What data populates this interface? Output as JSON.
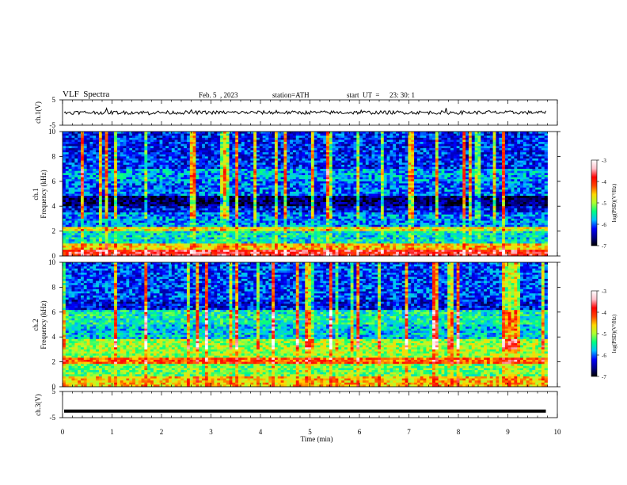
{
  "header": {
    "title": "VLF  Spectra",
    "date": "Feb. 5  , 2023",
    "station": "station=ATH",
    "start_label": "start  UT  =",
    "start_time": "23: 30: 1"
  },
  "colors": {
    "trace": "#000000",
    "colormap": [
      "#000000",
      "#00008b",
      "#0000ff",
      "#00bfff",
      "#00ff7f",
      "#adff2f",
      "#ffd700",
      "#ff4500",
      "#ff0000",
      "#ffc0cb",
      "#ffffff"
    ]
  },
  "chart_data": [
    {
      "type": "line",
      "panel": "ch1-waveform",
      "ylabel": "ch.1(V)",
      "ylim": [
        -5,
        5
      ],
      "yticks": [
        "5",
        "-5"
      ],
      "x_minutes_end": 9.8,
      "level_approx": 0,
      "grid": false
    },
    {
      "type": "heatmap",
      "panel": "ch1-spectrogram",
      "ylabel": "ch.1\nFrequency  (kHz)",
      "ylim": [
        0,
        10
      ],
      "yticks": [
        "0",
        "2",
        "4",
        "6",
        "8",
        "10"
      ],
      "colorbar": {
        "label": "log(PSD)(V²/Hz)",
        "range": [
          -7,
          -3
        ],
        "ticks": [
          "-3",
          "-4",
          "-5",
          "-6",
          "-7"
        ]
      },
      "bands_khz": [
        {
          "from": 0.0,
          "to": 0.5,
          "level": -3.8
        },
        {
          "from": 0.5,
          "to": 1.0,
          "level": -4.6
        },
        {
          "from": 1.0,
          "to": 2.0,
          "level": -5.6
        },
        {
          "from": 2.0,
          "to": 2.4,
          "level": -4.8
        },
        {
          "from": 2.4,
          "to": 3.5,
          "level": -5.9
        },
        {
          "from": 3.5,
          "to": 4.0,
          "level": -6.3
        },
        {
          "from": 4.0,
          "to": 4.8,
          "level": -6.7
        },
        {
          "from": 4.8,
          "to": 6.0,
          "level": -6.0
        },
        {
          "from": 6.0,
          "to": 7.0,
          "level": -5.8
        },
        {
          "from": 7.0,
          "to": 10.0,
          "level": -6.2
        }
      ]
    },
    {
      "type": "heatmap",
      "panel": "ch2-spectrogram",
      "ylabel": "ch.2\nFrequency  (kHz)",
      "ylim": [
        0,
        10
      ],
      "yticks": [
        "0",
        "2",
        "4",
        "6",
        "8",
        "10"
      ],
      "colorbar": {
        "label": "log(PSD)(V²/Hz)",
        "range": [
          -7,
          -3
        ],
        "ticks": [
          "-3",
          "-4",
          "-5",
          "-6",
          "-7"
        ]
      },
      "bands_khz": [
        {
          "from": 0.0,
          "to": 0.8,
          "level": -4.6
        },
        {
          "from": 0.8,
          "to": 1.8,
          "level": -5.2
        },
        {
          "from": 1.8,
          "to": 2.3,
          "level": -4.2
        },
        {
          "from": 2.3,
          "to": 3.8,
          "level": -5.0
        },
        {
          "from": 3.8,
          "to": 5.0,
          "level": -5.7
        },
        {
          "from": 5.0,
          "to": 6.2,
          "level": -5.5
        },
        {
          "from": 6.2,
          "to": 7.0,
          "level": -6.3
        },
        {
          "from": 7.0,
          "to": 10.0,
          "level": -6.1
        }
      ]
    },
    {
      "type": "line",
      "panel": "ch3-waveform",
      "ylabel": "ch.3(V)",
      "ylim": [
        -5,
        5
      ],
      "yticks": [
        "5",
        "-5"
      ],
      "x_minutes_end": 9.8,
      "level_approx": -2.5,
      "grid": false
    },
    {
      "type": "axis",
      "panel": "time-axis",
      "xlabel": "Time  (min)",
      "xlim": [
        0,
        10
      ],
      "xticks": [
        "0",
        "1",
        "2",
        "3",
        "4",
        "5",
        "6",
        "7",
        "8",
        "9",
        "10"
      ]
    }
  ]
}
